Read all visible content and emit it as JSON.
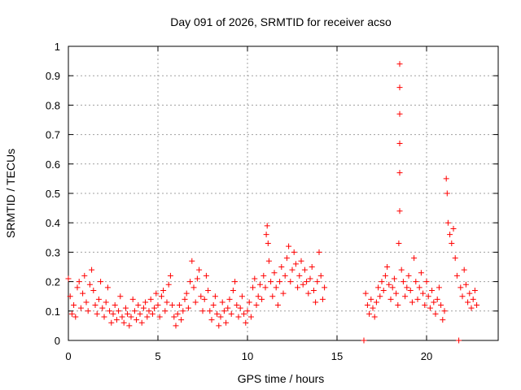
{
  "chart_data": {
    "type": "scatter",
    "title": "Day 091 of 2026, SRMTID for receiver acso",
    "xlabel": "GPS time / hours",
    "ylabel": "SRMTID / TECUs",
    "xlim": [
      0,
      24
    ],
    "ylim": [
      0,
      1
    ],
    "grid": true,
    "marker": "plus",
    "color": "#ff0000",
    "x_ticks": [
      0,
      5,
      10,
      15,
      20
    ],
    "x_tick_labels": [
      "0",
      "5",
      "10",
      "15",
      "20"
    ],
    "y_ticks": [
      0,
      0.1,
      0.2,
      0.3,
      0.4,
      0.5,
      0.6,
      0.7,
      0.8,
      0.9,
      1
    ],
    "y_tick_labels": [
      "0",
      "0.1",
      "0.2",
      "0.3",
      "0.4",
      "0.5",
      "0.6",
      "0.7",
      "0.8",
      "0.9",
      "1"
    ],
    "series": [
      {
        "name": "SRMTID",
        "points": [
          [
            0.0,
            0.21
          ],
          [
            0.1,
            0.15
          ],
          [
            0.2,
            0.09
          ],
          [
            0.3,
            0.12
          ],
          [
            0.4,
            0.08
          ],
          [
            0.5,
            0.18
          ],
          [
            0.6,
            0.2
          ],
          [
            0.7,
            0.11
          ],
          [
            0.8,
            0.16
          ],
          [
            0.9,
            0.22
          ],
          [
            1.0,
            0.13
          ],
          [
            1.1,
            0.1
          ],
          [
            1.2,
            0.19
          ],
          [
            1.3,
            0.24
          ],
          [
            1.4,
            0.17
          ],
          [
            1.5,
            0.12
          ],
          [
            1.6,
            0.09
          ],
          [
            1.7,
            0.14
          ],
          [
            1.8,
            0.2
          ],
          [
            1.9,
            0.11
          ],
          [
            2.0,
            0.08
          ],
          [
            2.1,
            0.13
          ],
          [
            2.2,
            0.18
          ],
          [
            2.3,
            0.1
          ],
          [
            2.4,
            0.06
          ],
          [
            2.5,
            0.09
          ],
          [
            2.6,
            0.12
          ],
          [
            2.7,
            0.07
          ],
          [
            2.8,
            0.1
          ],
          [
            2.9,
            0.15
          ],
          [
            3.0,
            0.08
          ],
          [
            3.1,
            0.06
          ],
          [
            3.2,
            0.11
          ],
          [
            3.3,
            0.09
          ],
          [
            3.4,
            0.05
          ],
          [
            3.5,
            0.08
          ],
          [
            3.6,
            0.14
          ],
          [
            3.7,
            0.1
          ],
          [
            3.8,
            0.07
          ],
          [
            3.9,
            0.12
          ],
          [
            4.0,
            0.09
          ],
          [
            4.1,
            0.06
          ],
          [
            4.2,
            0.11
          ],
          [
            4.3,
            0.13
          ],
          [
            4.4,
            0.08
          ],
          [
            4.5,
            0.1
          ],
          [
            4.6,
            0.14
          ],
          [
            4.7,
            0.09
          ],
          [
            4.8,
            0.11
          ],
          [
            4.9,
            0.16
          ],
          [
            5.0,
            0.12
          ],
          [
            5.1,
            0.08
          ],
          [
            5.2,
            0.15
          ],
          [
            5.3,
            0.17
          ],
          [
            5.4,
            0.1
          ],
          [
            5.5,
            0.13
          ],
          [
            5.6,
            0.19
          ],
          [
            5.7,
            0.22
          ],
          [
            5.8,
            0.12
          ],
          [
            5.9,
            0.08
          ],
          [
            6.0,
            0.05
          ],
          [
            6.1,
            0.09
          ],
          [
            6.2,
            0.12
          ],
          [
            6.3,
            0.07
          ],
          [
            6.4,
            0.1
          ],
          [
            6.5,
            0.14
          ],
          [
            6.6,
            0.16
          ],
          [
            6.7,
            0.11
          ],
          [
            6.8,
            0.2
          ],
          [
            6.9,
            0.27
          ],
          [
            7.0,
            0.18
          ],
          [
            7.1,
            0.13
          ],
          [
            7.2,
            0.21
          ],
          [
            7.3,
            0.24
          ],
          [
            7.4,
            0.15
          ],
          [
            7.5,
            0.1
          ],
          [
            7.6,
            0.14
          ],
          [
            7.7,
            0.22
          ],
          [
            7.8,
            0.17
          ],
          [
            7.9,
            0.1
          ],
          [
            8.0,
            0.07
          ],
          [
            8.1,
            0.12
          ],
          [
            8.2,
            0.15
          ],
          [
            8.3,
            0.09
          ],
          [
            8.4,
            0.05
          ],
          [
            8.5,
            0.08
          ],
          [
            8.6,
            0.13
          ],
          [
            8.7,
            0.1
          ],
          [
            8.8,
            0.06
          ],
          [
            8.9,
            0.11
          ],
          [
            9.0,
            0.14
          ],
          [
            9.1,
            0.09
          ],
          [
            9.2,
            0.17
          ],
          [
            9.3,
            0.2
          ],
          [
            9.4,
            0.12
          ],
          [
            9.5,
            0.08
          ],
          [
            9.6,
            0.11
          ],
          [
            9.7,
            0.15
          ],
          [
            9.8,
            0.09
          ],
          [
            9.9,
            0.06
          ],
          [
            10.0,
            0.1
          ],
          [
            10.1,
            0.13
          ],
          [
            10.2,
            0.08
          ],
          [
            10.3,
            0.18
          ],
          [
            10.4,
            0.21
          ],
          [
            10.5,
            0.12
          ],
          [
            10.6,
            0.15
          ],
          [
            10.7,
            0.19
          ],
          [
            10.8,
            0.14
          ],
          [
            10.9,
            0.22
          ],
          [
            11.0,
            0.18
          ],
          [
            11.05,
            0.36
          ],
          [
            11.1,
            0.39
          ],
          [
            11.15,
            0.33
          ],
          [
            11.2,
            0.27
          ],
          [
            11.3,
            0.2
          ],
          [
            11.4,
            0.15
          ],
          [
            11.5,
            0.23
          ],
          [
            11.6,
            0.18
          ],
          [
            11.7,
            0.12
          ],
          [
            11.8,
            0.2
          ],
          [
            11.9,
            0.25
          ],
          [
            12.0,
            0.16
          ],
          [
            12.1,
            0.22
          ],
          [
            12.2,
            0.28
          ],
          [
            12.3,
            0.32
          ],
          [
            12.4,
            0.2
          ],
          [
            12.5,
            0.24
          ],
          [
            12.6,
            0.3
          ],
          [
            12.7,
            0.26
          ],
          [
            12.8,
            0.18
          ],
          [
            12.9,
            0.22
          ],
          [
            13.0,
            0.27
          ],
          [
            13.1,
            0.19
          ],
          [
            13.2,
            0.24
          ],
          [
            13.3,
            0.2
          ],
          [
            13.4,
            0.16
          ],
          [
            13.5,
            0.21
          ],
          [
            13.6,
            0.25
          ],
          [
            13.7,
            0.17
          ],
          [
            13.8,
            0.13
          ],
          [
            13.9,
            0.2
          ],
          [
            14.0,
            0.3
          ],
          [
            14.1,
            0.22
          ],
          [
            14.2,
            0.14
          ],
          [
            14.3,
            0.18
          ],
          [
            16.5,
            0.0
          ],
          [
            16.6,
            0.16
          ],
          [
            16.7,
            0.12
          ],
          [
            16.8,
            0.09
          ],
          [
            16.9,
            0.14
          ],
          [
            17.0,
            0.11
          ],
          [
            17.1,
            0.08
          ],
          [
            17.2,
            0.13
          ],
          [
            17.3,
            0.18
          ],
          [
            17.4,
            0.15
          ],
          [
            17.5,
            0.2
          ],
          [
            17.6,
            0.17
          ],
          [
            17.7,
            0.22
          ],
          [
            17.8,
            0.25
          ],
          [
            17.9,
            0.19
          ],
          [
            18.0,
            0.14
          ],
          [
            18.1,
            0.18
          ],
          [
            18.2,
            0.21
          ],
          [
            18.3,
            0.16
          ],
          [
            18.4,
            0.12
          ],
          [
            18.45,
            0.33
          ],
          [
            18.5,
            0.94
          ],
          [
            18.5,
            0.86
          ],
          [
            18.5,
            0.77
          ],
          [
            18.5,
            0.67
          ],
          [
            18.5,
            0.57
          ],
          [
            18.5,
            0.44
          ],
          [
            18.6,
            0.24
          ],
          [
            18.7,
            0.2
          ],
          [
            18.8,
            0.15
          ],
          [
            18.9,
            0.18
          ],
          [
            19.0,
            0.22
          ],
          [
            19.1,
            0.17
          ],
          [
            19.2,
            0.13
          ],
          [
            19.3,
            0.28
          ],
          [
            19.4,
            0.2
          ],
          [
            19.5,
            0.14
          ],
          [
            19.6,
            0.18
          ],
          [
            19.7,
            0.23
          ],
          [
            19.8,
            0.16
          ],
          [
            19.9,
            0.12
          ],
          [
            20.0,
            0.2
          ],
          [
            20.1,
            0.15
          ],
          [
            20.2,
            0.11
          ],
          [
            20.3,
            0.17
          ],
          [
            20.4,
            0.13
          ],
          [
            20.5,
            0.09
          ],
          [
            20.6,
            0.14
          ],
          [
            20.7,
            0.18
          ],
          [
            20.8,
            0.12
          ],
          [
            20.9,
            0.07
          ],
          [
            21.0,
            0.1
          ],
          [
            21.1,
            0.55
          ],
          [
            21.15,
            0.5
          ],
          [
            21.2,
            0.4
          ],
          [
            21.3,
            0.36
          ],
          [
            21.4,
            0.33
          ],
          [
            21.5,
            0.38
          ],
          [
            21.6,
            0.28
          ],
          [
            21.7,
            0.22
          ],
          [
            21.8,
            0.0
          ],
          [
            21.9,
            0.18
          ],
          [
            22.0,
            0.15
          ],
          [
            22.1,
            0.24
          ],
          [
            22.2,
            0.19
          ],
          [
            22.3,
            0.13
          ],
          [
            22.4,
            0.16
          ],
          [
            22.5,
            0.11
          ],
          [
            22.6,
            0.14
          ],
          [
            22.7,
            0.17
          ],
          [
            22.8,
            0.12
          ]
        ]
      }
    ]
  }
}
